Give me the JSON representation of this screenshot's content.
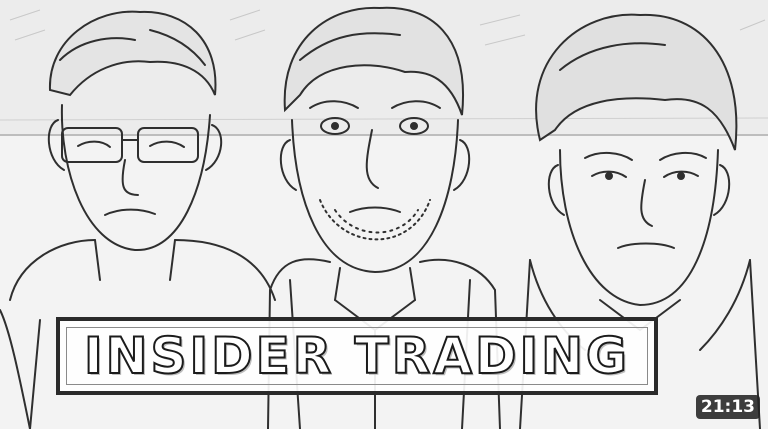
{
  "thumbnail": {
    "title": "INSIDER TRADING",
    "duration": "21:13",
    "style": "pencil-sketch",
    "colors": {
      "line": "#2a2a2a",
      "paper": "#f4f4f4",
      "badge_bg": "#232323",
      "badge_text": "#ffffff"
    }
  }
}
